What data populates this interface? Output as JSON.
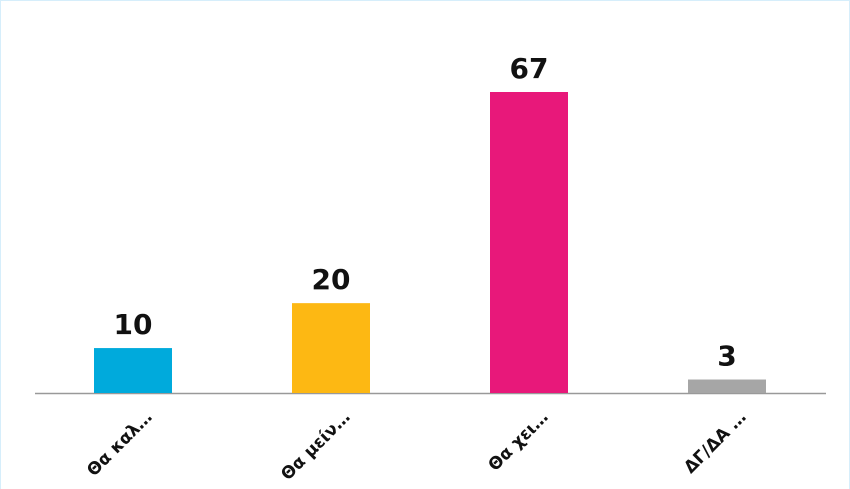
{
  "chart_data": {
    "type": "bar",
    "categories": [
      "Θα καλ…",
      "Θα μείν…",
      "Θα χει…",
      "ΔΓ/ΔΑ …"
    ],
    "values": [
      10,
      20,
      67,
      3
    ],
    "colors": [
      "#00aadc",
      "#fdb813",
      "#e8187a",
      "#a6a6a6"
    ]
  }
}
